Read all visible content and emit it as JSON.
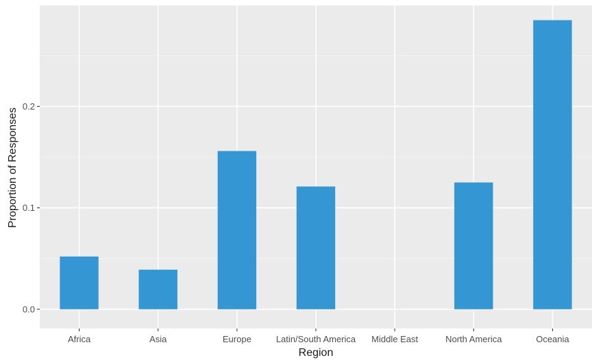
{
  "chart_data": {
    "type": "bar",
    "title": "",
    "xlabel": "Region",
    "ylabel": "Proportion of Responses",
    "categories": [
      "Africa",
      "Asia",
      "Europe",
      "Latin/South America",
      "Middle East",
      "North America",
      "Oceania"
    ],
    "values": [
      0.052,
      0.039,
      0.156,
      0.121,
      0.0,
      0.125,
      0.285
    ],
    "ylim": [
      -0.019,
      0.2995
    ],
    "yticks": [
      0.0,
      0.1,
      0.2
    ],
    "ytick_labels": [
      "0.0",
      "0.1",
      "0.2"
    ],
    "grid": true,
    "colors": {
      "bar": "#3497d3",
      "panel_background": "#ebebeb",
      "grid_major": "#ffffff",
      "grid_minor": "#f4f4f4"
    }
  }
}
